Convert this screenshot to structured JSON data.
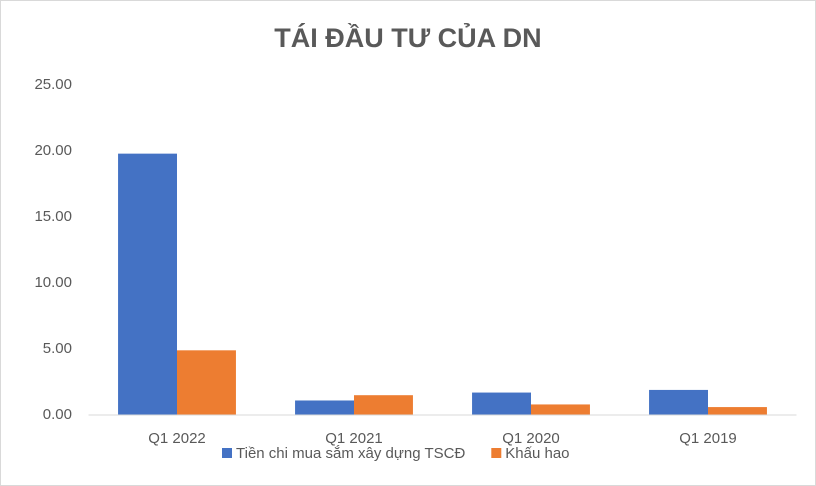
{
  "chart_data": {
    "type": "bar",
    "title": "TÁI ĐẦU TƯ CỦA DN",
    "categories": [
      "Q1 2022",
      "Q1 2021",
      "Q1 2020",
      "Q1 2019"
    ],
    "series": [
      {
        "name": "Tiền chi mua sắm xây dựng TSCĐ",
        "color": "#4472c4",
        "values": [
          19.8,
          1.1,
          1.7,
          1.9
        ]
      },
      {
        "name": "Khấu hao",
        "color": "#ed7d31",
        "values": [
          4.9,
          1.5,
          0.8,
          0.6
        ]
      }
    ],
    "ylim": [
      0,
      25
    ],
    "yticks": [
      {
        "value": 0,
        "label": "0.00"
      },
      {
        "value": 5,
        "label": "5.00"
      },
      {
        "value": 10,
        "label": "10.00"
      },
      {
        "value": 15,
        "label": "15.00"
      },
      {
        "value": 20,
        "label": "20.00"
      },
      {
        "value": 25,
        "label": "25.00"
      }
    ],
    "grid": false,
    "legend": "bottom"
  }
}
